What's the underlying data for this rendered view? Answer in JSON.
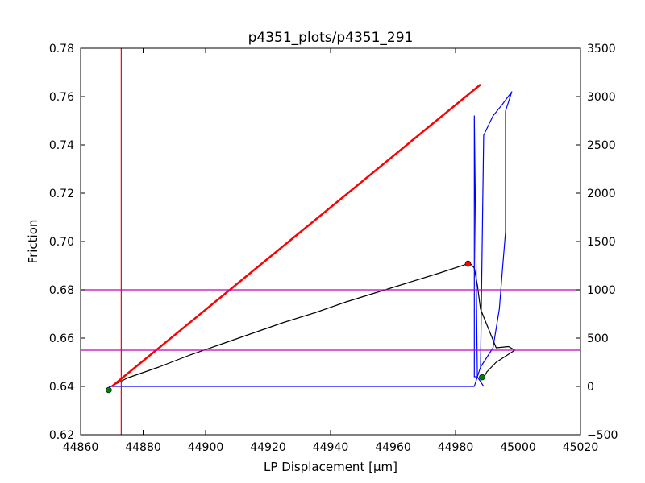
{
  "chart_data": {
    "type": "line",
    "title": "p4351_plots/p4351_291",
    "xlabel": "LP Displacement [μm]",
    "ylabel": "Friction",
    "y2label": "",
    "xlim": [
      44860,
      45020
    ],
    "ylim": [
      0.62,
      0.78
    ],
    "y2lim": [
      -500,
      3500
    ],
    "xticks": [
      44860,
      44880,
      44900,
      44920,
      44940,
      44960,
      44980,
      45000,
      45020
    ],
    "yticks": [
      0.62,
      0.64,
      0.66,
      0.68,
      0.7,
      0.72,
      0.74,
      0.76,
      0.78
    ],
    "y2ticks": [
      -500,
      0,
      500,
      1000,
      1500,
      2000,
      2500,
      3000,
      3500
    ],
    "grid": false,
    "colors": {
      "friction": "#000000",
      "secondary": "#0000ff",
      "fit_line": "#ff0000",
      "vertical_marker": "#ff0000",
      "horizontal_markers": "#bf00bf",
      "start_end_points": "#008000",
      "peak_point": "#ff0000"
    },
    "series": [
      {
        "axis": "left",
        "color": "#000000",
        "x": [
          44869,
          44875,
          44885,
          44895,
          44905,
          44915,
          44925,
          44935,
          44945,
          44955,
          44965,
          44975,
          44984,
          44985,
          44986,
          44987,
          44988,
          44993,
          44997,
          44999,
          44996,
          44993,
          44990,
          44989
        ],
        "y": [
          0.6395,
          0.6435,
          0.648,
          0.653,
          0.6575,
          0.662,
          0.6665,
          0.6705,
          0.675,
          0.679,
          0.683,
          0.687,
          0.6908,
          0.6905,
          0.689,
          0.682,
          0.672,
          0.656,
          0.6565,
          0.655,
          0.6525,
          0.65,
          0.646,
          0.6435
        ]
      },
      {
        "axis": "right",
        "color": "#0000ff",
        "x": [
          44869,
          44880,
          44900,
          44920,
          44940,
          44960,
          44980,
          44986,
          44987,
          44988,
          44989,
          44992,
          44995,
          44998,
          44997,
          44996,
          44996,
          44995,
          44994,
          44993,
          44992,
          44990,
          44988,
          44987,
          44986,
          44986,
          44987,
          44989
        ],
        "y": [
          0,
          0,
          0,
          0,
          0,
          0,
          0,
          0,
          100,
          200,
          2600,
          2800,
          2920,
          3050,
          2950,
          2850,
          1600,
          1200,
          800,
          600,
          400,
          300,
          200,
          100,
          100,
          2800,
          100,
          0
        ]
      },
      {
        "axis": "left",
        "color": "#ff0000",
        "x": [
          44870,
          44988
        ],
        "y": [
          0.64,
          0.765
        ]
      }
    ],
    "vertical_lines": [
      44873
    ],
    "horizontal_lines_right_axis": [
      1000,
      375
    ],
    "points": [
      {
        "x": 44869,
        "y": 0.6385,
        "color": "#008000",
        "axis": "left"
      },
      {
        "x": 44988.5,
        "y": 0.6438,
        "color": "#008000",
        "axis": "left"
      },
      {
        "x": 44984,
        "y": 0.6908,
        "color": "#ff0000",
        "axis": "left"
      }
    ]
  }
}
